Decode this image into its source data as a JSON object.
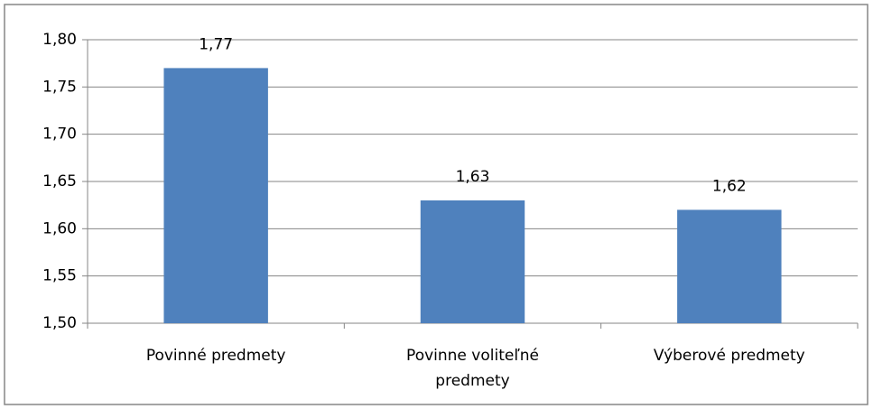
{
  "chart_data": {
    "type": "bar",
    "categories": [
      "Povinné predmety",
      "Povinne voliteľné predmety",
      "Výberové predmety"
    ],
    "values": [
      1.77,
      1.63,
      1.62
    ],
    "value_labels": [
      "1,77",
      "1,63",
      "1,62"
    ],
    "color": "#4f81bd",
    "ylim": [
      1.5,
      1.8
    ],
    "yticks": [
      {
        "value": 1.5,
        "label": "1,50"
      },
      {
        "value": 1.55,
        "label": "1,55"
      },
      {
        "value": 1.6,
        "label": "1,60"
      },
      {
        "value": 1.65,
        "label": "1,65"
      },
      {
        "value": 1.7,
        "label": "1,70"
      },
      {
        "value": 1.75,
        "label": "1,75"
      },
      {
        "value": 1.8,
        "label": "1,80"
      }
    ],
    "grid": true
  }
}
